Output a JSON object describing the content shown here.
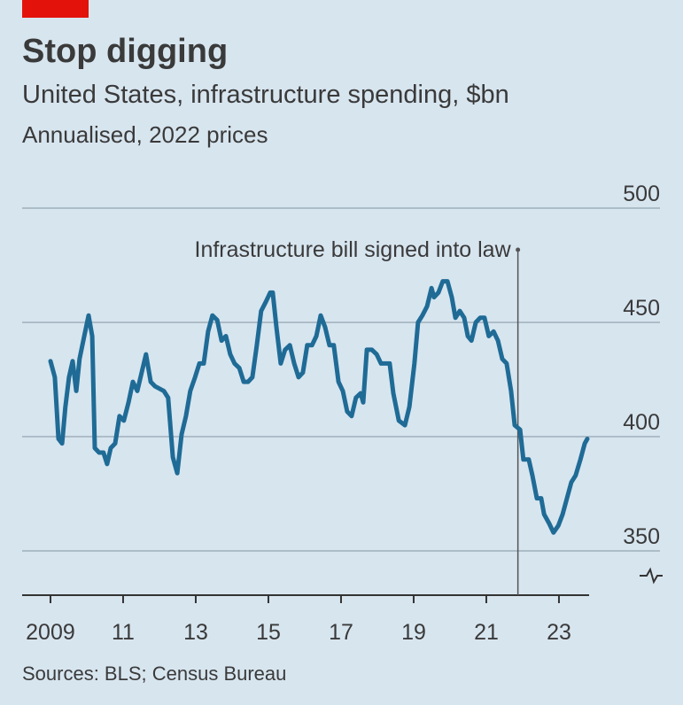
{
  "chart_data": {
    "type": "line",
    "title": "Stop digging",
    "subtitle": "United States, infrastructure spending, $bn",
    "note": "Annualised, 2022 prices",
    "source": "Sources: BLS; Census Bureau",
    "annotation": {
      "text": "Infrastructure bill signed into law",
      "x": 2021.87
    },
    "xlim": [
      2008.22,
      2023.83
    ],
    "xticks": [
      {
        "value": 2009,
        "label": "2009"
      },
      {
        "value": 2011,
        "label": "11"
      },
      {
        "value": 2013,
        "label": "13"
      },
      {
        "value": 2015,
        "label": "15"
      },
      {
        "value": 2017,
        "label": "17"
      },
      {
        "value": 2019,
        "label": "19"
      },
      {
        "value": 2021,
        "label": "21"
      },
      {
        "value": 2023,
        "label": "23"
      }
    ],
    "ylim": [
      330.6,
      500
    ],
    "yticks": [
      350,
      400,
      450,
      500
    ],
    "grid": true,
    "series": [
      {
        "color": "#1f6b96",
        "x": [
          2009.0,
          2009.12,
          2009.22,
          2009.32,
          2009.41,
          2009.51,
          2009.61,
          2009.71,
          2009.8,
          2009.93,
          2010.05,
          2010.15,
          2010.22,
          2010.34,
          2010.46,
          2010.56,
          2010.66,
          2010.78,
          2010.9,
          2011.02,
          2011.15,
          2011.27,
          2011.39,
          2011.51,
          2011.63,
          2011.76,
          2011.88,
          2012.12,
          2012.24,
          2012.37,
          2012.49,
          2012.61,
          2012.73,
          2012.85,
          2012.98,
          2013.1,
          2013.22,
          2013.34,
          2013.46,
          2013.59,
          2013.71,
          2013.83,
          2013.95,
          2014.07,
          2014.2,
          2014.32,
          2014.44,
          2014.56,
          2014.68,
          2014.8,
          2014.93,
          2015.05,
          2015.12,
          2015.22,
          2015.34,
          2015.46,
          2015.59,
          2015.71,
          2015.83,
          2015.95,
          2016.07,
          2016.2,
          2016.32,
          2016.44,
          2016.56,
          2016.68,
          2016.8,
          2016.93,
          2017.05,
          2017.17,
          2017.29,
          2017.41,
          2017.54,
          2017.61,
          2017.71,
          2017.85,
          2017.98,
          2018.1,
          2018.34,
          2018.44,
          2018.59,
          2018.76,
          2018.88,
          2019.02,
          2019.12,
          2019.24,
          2019.37,
          2019.49,
          2019.56,
          2019.68,
          2019.8,
          2019.93,
          2020.05,
          2020.15,
          2020.27,
          2020.39,
          2020.49,
          2020.59,
          2020.71,
          2020.83,
          2020.95,
          2021.07,
          2021.2,
          2021.32,
          2021.44,
          2021.56,
          2021.68,
          2021.78,
          2021.93,
          2022.02,
          2022.17,
          2022.27,
          2022.39,
          2022.51,
          2022.59,
          2022.73,
          2022.85,
          2022.98,
          2023.1,
          2023.22,
          2023.34,
          2023.46,
          2023.59,
          2023.71,
          2023.78
        ],
        "values": [
          433,
          426,
          399,
          397,
          413,
          426,
          433,
          420,
          434,
          444,
          453,
          444,
          395,
          393,
          393,
          388,
          395,
          397,
          409,
          407,
          415,
          424,
          420,
          428,
          436,
          424,
          422,
          420,
          417,
          391,
          384,
          401,
          409,
          420,
          426,
          432,
          432,
          446,
          453,
          451,
          442,
          444,
          436,
          432,
          430,
          424,
          424,
          426,
          440,
          455,
          459,
          463,
          463,
          448,
          432,
          438,
          440,
          432,
          426,
          428,
          440,
          440,
          444,
          453,
          448,
          440,
          440,
          424,
          420,
          411,
          409,
          417,
          419,
          415,
          438,
          438,
          436,
          432,
          432,
          419,
          407,
          405,
          413,
          432,
          450,
          453,
          457,
          465,
          461,
          463,
          468,
          468,
          461,
          452,
          455,
          452,
          444,
          442,
          450,
          452,
          452,
          444,
          446,
          442,
          434,
          432,
          420,
          405,
          403,
          390,
          390,
          383,
          373,
          373,
          366,
          362,
          358,
          361,
          366,
          373,
          380,
          383,
          390,
          397,
          399
        ]
      }
    ]
  }
}
